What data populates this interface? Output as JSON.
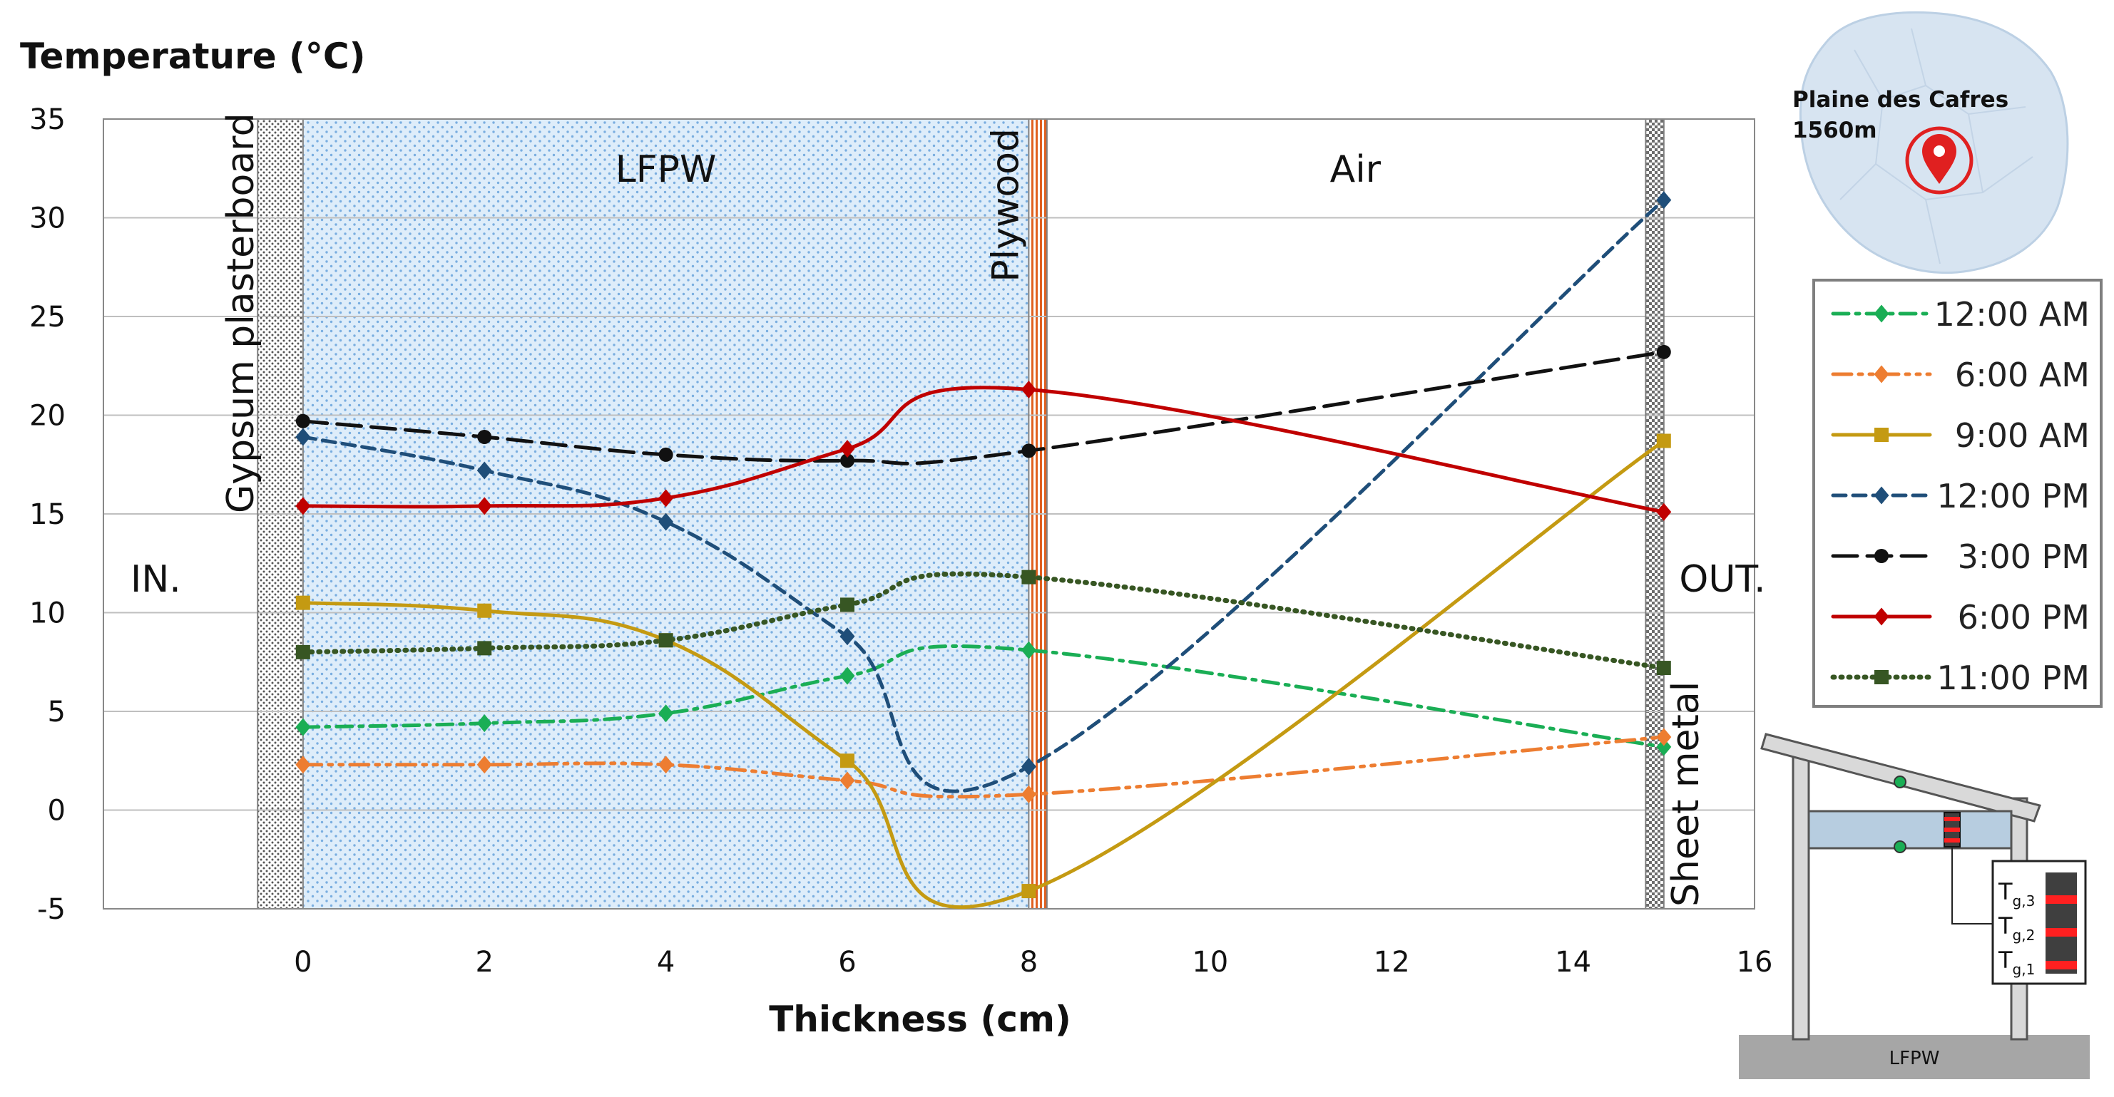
{
  "chart_data": {
    "type": "line",
    "ylabel": "Temperature (°C)",
    "xlabel": "Thickness (cm)",
    "xlim": [
      -2.2,
      16
    ],
    "ylim": [
      -5,
      35
    ],
    "xticks": [
      0,
      2,
      4,
      6,
      8,
      10,
      12,
      14,
      16
    ],
    "yticks": [
      -5,
      0,
      5,
      10,
      15,
      20,
      25,
      30,
      35
    ],
    "x": [
      0,
      2,
      4,
      6,
      8,
      15
    ],
    "series": [
      {
        "name": "12:00 AM",
        "color": "#1aae55",
        "dash": "22 10 5 10",
        "marker": "diamond",
        "values": [
          4.2,
          4.4,
          4.9,
          6.8,
          8.1,
          3.2
        ]
      },
      {
        "name": "6:00 AM",
        "color": "#ed7d31",
        "dash": "26 10 5 10 5 10",
        "marker": "diamond",
        "values": [
          2.3,
          2.3,
          2.3,
          1.5,
          0.8,
          3.7
        ]
      },
      {
        "name": "9:00 AM",
        "color": "#c49a12",
        "dash": "",
        "marker": "square",
        "values": [
          10.5,
          10.1,
          8.6,
          2.5,
          -4.1,
          18.7
        ]
      },
      {
        "name": "12:00 PM",
        "color": "#1f4e79",
        "dash": "18 10",
        "marker": "diamond",
        "values": [
          18.9,
          17.2,
          14.6,
          8.8,
          2.2,
          30.9
        ]
      },
      {
        "name": "3:00 PM",
        "color": "#111111",
        "dash": "34 14",
        "marker": "circle",
        "values": [
          19.7,
          18.9,
          18.0,
          17.7,
          18.2,
          23.2
        ]
      },
      {
        "name": "6:00 PM",
        "color": "#c00000",
        "dash": "",
        "marker": "diamond",
        "values": [
          15.4,
          15.4,
          15.8,
          18.3,
          21.3,
          15.1
        ]
      },
      {
        "name": "11:00 PM",
        "color": "#375623",
        "dash": "2 9",
        "marker": "square",
        "values": [
          8.0,
          8.2,
          8.6,
          10.4,
          11.8,
          7.2
        ]
      }
    ],
    "regions": {
      "gypsum": {
        "label": "Gypsum plasterboard",
        "x0": -0.5,
        "x1": 0
      },
      "lfpw": {
        "label": "LFPW",
        "x0": 0,
        "x1": 8
      },
      "plywood": {
        "label": "Plywood",
        "x0": 8,
        "x1": 8.2
      },
      "air": {
        "label": "Air",
        "x0": 8.2,
        "x1": 14.8
      },
      "sheet_metal": {
        "label": "Sheet metal",
        "x0": 14.8,
        "x1": 15
      }
    },
    "side_labels": {
      "inside": "IN.",
      "outside": "OUT."
    }
  },
  "map_inset": {
    "place": "Plaine des Cafres",
    "altitude": "1560m",
    "pin_color": "#e02020"
  },
  "schematic": {
    "floor_label": "LFPW",
    "sensors": [
      "T",
      "T",
      "T"
    ],
    "sensor_subs": [
      "g,3",
      "g,2",
      "g,1"
    ]
  }
}
